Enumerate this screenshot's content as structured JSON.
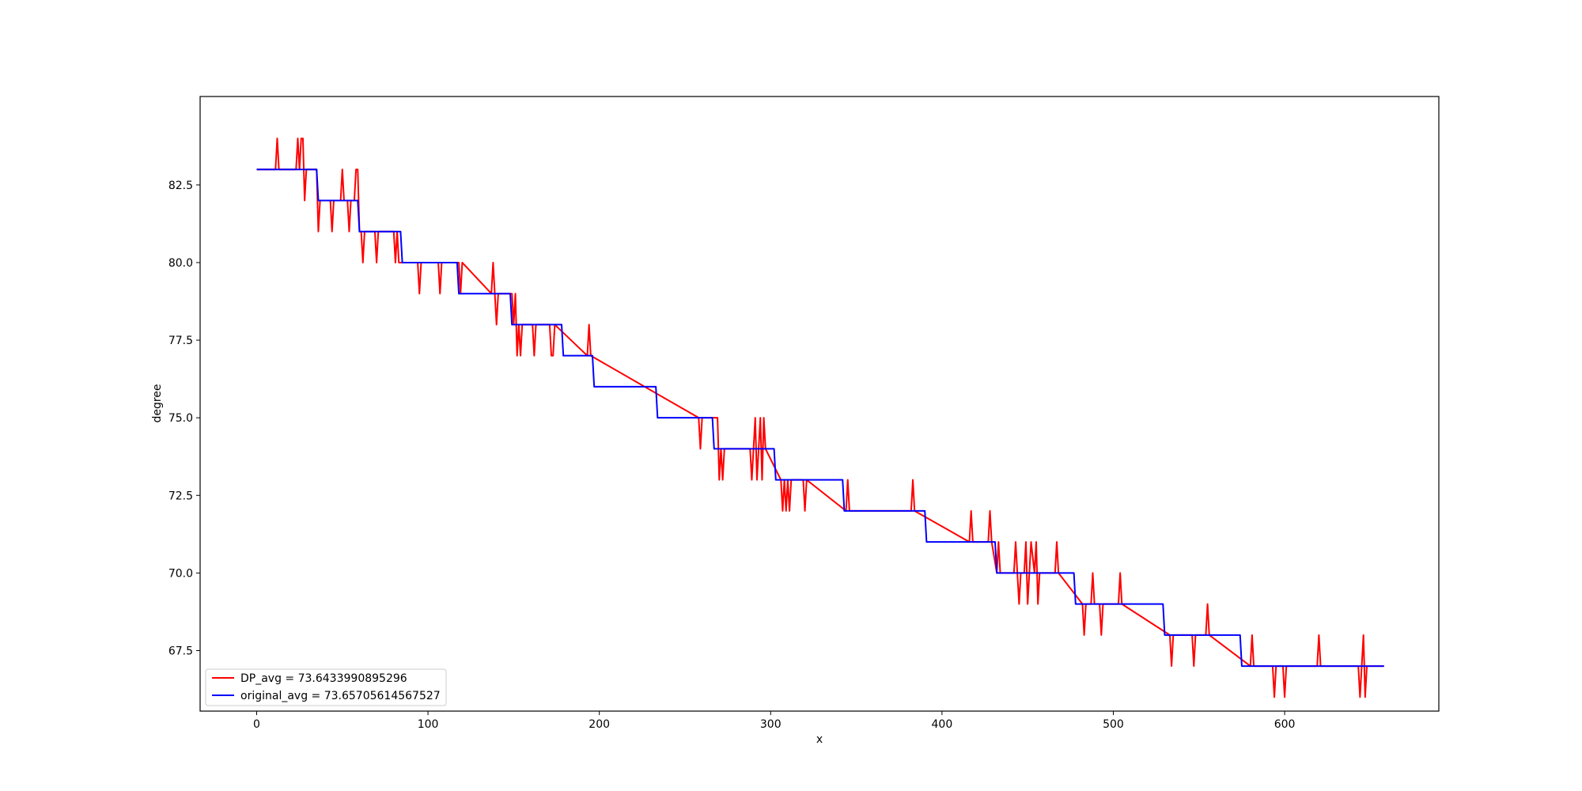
{
  "chart_data": {
    "type": "line",
    "title": "",
    "xlabel": "x",
    "ylabel": "degree",
    "xlim": [
      -33,
      690
    ],
    "ylim": [
      65.55,
      85.35
    ],
    "xticks": [
      0,
      100,
      200,
      300,
      400,
      500,
      600
    ],
    "yticks": [
      67.5,
      70.0,
      72.5,
      75.0,
      77.5,
      80.0,
      82.5
    ],
    "xtick_labels": [
      "0",
      "100",
      "200",
      "300",
      "400",
      "500",
      "600"
    ],
    "ytick_labels": [
      "67.5",
      "70.0",
      "72.5",
      "75.0",
      "77.5",
      "80.0",
      "82.5"
    ],
    "grid": false,
    "legend_position": "lower-left",
    "series": [
      {
        "name": "DP_avg = 73.6433990895296",
        "color": "#ff0000",
        "x": [
          0,
          11,
          12,
          13,
          23,
          24,
          25,
          26,
          27,
          28,
          29,
          35,
          36,
          37,
          43,
          44,
          45,
          49,
          50,
          51,
          53,
          54,
          55,
          57,
          58,
          59,
          60,
          61,
          62,
          63,
          69,
          70,
          71,
          80,
          81,
          82,
          83,
          84,
          85,
          94,
          95,
          96,
          106,
          107,
          108,
          118,
          119,
          120,
          137,
          138,
          139,
          140,
          141,
          149,
          150,
          151,
          152,
          153,
          154,
          155,
          161,
          162,
          163,
          171,
          172,
          173,
          174,
          193,
          194,
          195,
          258,
          259,
          260,
          269,
          270,
          271,
          272,
          273,
          288,
          289,
          290,
          291,
          292,
          293,
          294,
          295,
          296,
          297,
          306,
          307,
          308,
          309,
          310,
          311,
          312,
          319,
          320,
          321,
          344,
          345,
          346,
          382,
          383,
          384,
          416,
          417,
          418,
          427,
          428,
          429,
          432,
          433,
          434,
          442,
          443,
          444,
          445,
          446,
          448,
          449,
          450,
          451,
          452,
          454,
          455,
          456,
          457,
          458,
          466,
          467,
          468,
          482,
          483,
          484,
          487,
          488,
          489,
          492,
          493,
          494,
          503,
          504,
          505,
          533,
          534,
          535,
          546,
          547,
          548,
          554,
          555,
          556,
          580,
          581,
          582,
          593,
          594,
          595,
          599,
          600,
          601,
          619,
          620,
          621,
          643,
          644,
          645,
          646,
          647,
          648,
          649,
          658
        ],
        "y": [
          83,
          83,
          84,
          83,
          83,
          84,
          83,
          84,
          84,
          82,
          83,
          83,
          81,
          82,
          82,
          81,
          82,
          82,
          83,
          82,
          82,
          81,
          82,
          82,
          83,
          83,
          81,
          81,
          80,
          81,
          81,
          80,
          81,
          81,
          80,
          81,
          80,
          80,
          80,
          80,
          79,
          80,
          80,
          79,
          80,
          80,
          79,
          80,
          79,
          80,
          79,
          78,
          79,
          79,
          78,
          79,
          77,
          78,
          77,
          78,
          78,
          77,
          78,
          78,
          77,
          77,
          78,
          77,
          78,
          77,
          75,
          74,
          75,
          75,
          73,
          74,
          73,
          74,
          74,
          73,
          74,
          75,
          73,
          74,
          75,
          73,
          75,
          74,
          73,
          72,
          73,
          72,
          73,
          72,
          73,
          73,
          72,
          73,
          72,
          73,
          72,
          72,
          73,
          72,
          71,
          72,
          71,
          71,
          72,
          71,
          70,
          71,
          70,
          70,
          71,
          70,
          69,
          70,
          70,
          71,
          69,
          70,
          71,
          70,
          71,
          69,
          70,
          70,
          70,
          71,
          70,
          69,
          68,
          69,
          69,
          70,
          69,
          69,
          68,
          69,
          69,
          70,
          69,
          68,
          67,
          68,
          68,
          67,
          68,
          68,
          69,
          68,
          67,
          68,
          67,
          67,
          66,
          67,
          67,
          66,
          67,
          67,
          68,
          67,
          67,
          66,
          67,
          68,
          66,
          67,
          67,
          67
        ]
      },
      {
        "name": "original_avg = 73.65705614567527",
        "color": "#0000ff",
        "x": [
          0,
          35,
          36,
          59,
          60,
          84,
          85,
          117,
          118,
          148,
          149,
          178,
          179,
          196,
          197,
          233,
          234,
          266,
          267,
          302,
          303,
          342,
          343,
          390,
          391,
          431,
          432,
          477,
          478,
          529,
          530,
          574,
          575,
          658
        ],
        "y": [
          83,
          83,
          82,
          82,
          81,
          81,
          80,
          80,
          79,
          79,
          78,
          78,
          77,
          77,
          76,
          76,
          75,
          75,
          74,
          74,
          73,
          73,
          72,
          72,
          71,
          71,
          70,
          70,
          69,
          69,
          68,
          68,
          67,
          67
        ]
      }
    ]
  }
}
